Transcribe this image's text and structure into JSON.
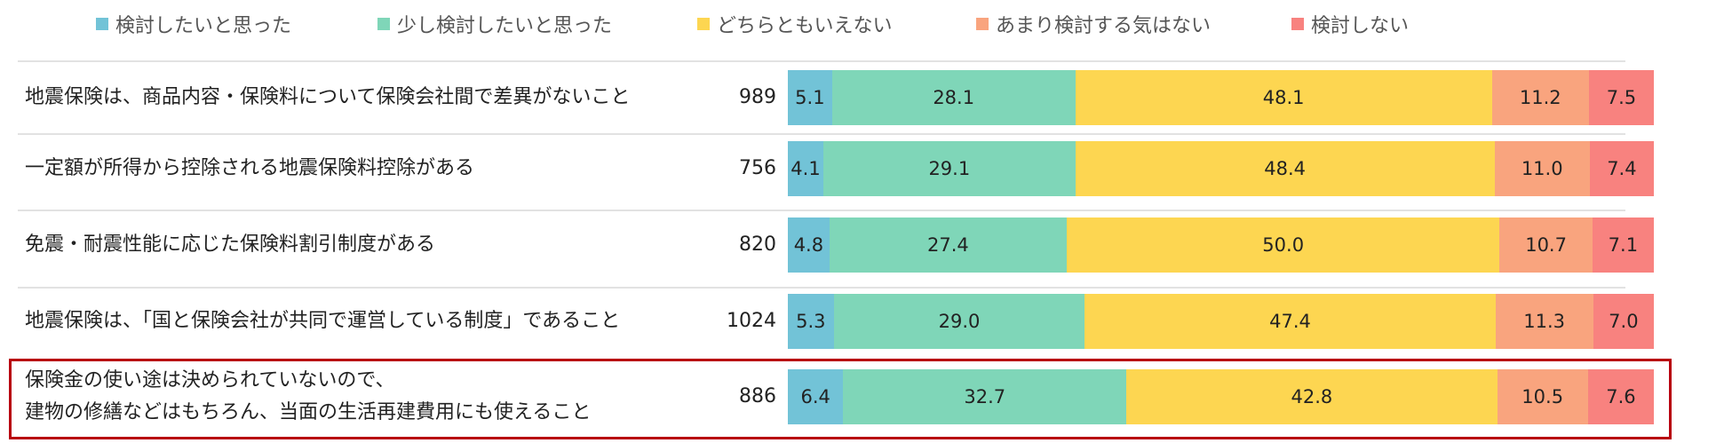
{
  "chart_data": {
    "type": "bar",
    "orientation": "horizontal",
    "stacked": true,
    "percent_stacked": true,
    "legend_position": "top",
    "grid": false,
    "categories": [
      [
        "地震保険は、商品内容・保険料について保険会社間で差異がないこと"
      ],
      [
        "一定額が所得から控除される地震保険料控除がある"
      ],
      [
        "免震・耐震性能に応じた保険料割引制度がある"
      ],
      [
        "地震保険は、「国と保険会社が共同で運営している制度」であること"
      ],
      [
        "保険金の使い途は決められていないので、",
        "建物の修繕などはもちろん、当面の生活再建費用にも使えること"
      ]
    ],
    "n": [
      "989",
      "756",
      "820",
      "1024",
      "886"
    ],
    "series": [
      {
        "name": "検討したいと思った",
        "color": "#72c3d7",
        "values": [
          5.1,
          4.1,
          4.8,
          5.3,
          6.4
        ]
      },
      {
        "name": "少し検討したいと思った",
        "color": "#7fd6b8",
        "values": [
          28.1,
          29.1,
          27.4,
          29.0,
          32.7
        ]
      },
      {
        "name": "どちらともいえない",
        "color": "#fdd651",
        "values": [
          48.1,
          48.4,
          50.0,
          47.4,
          42.8
        ]
      },
      {
        "name": "あまり検討する気はない",
        "color": "#f9a47e",
        "values": [
          11.2,
          11.0,
          10.7,
          11.3,
          10.5
        ]
      },
      {
        "name": "検討しない",
        "color": "#f8827f",
        "values": [
          7.5,
          7.4,
          7.1,
          7.0,
          7.6
        ]
      }
    ],
    "highlighted_row": 4,
    "highlight_color": "#b8000f"
  }
}
